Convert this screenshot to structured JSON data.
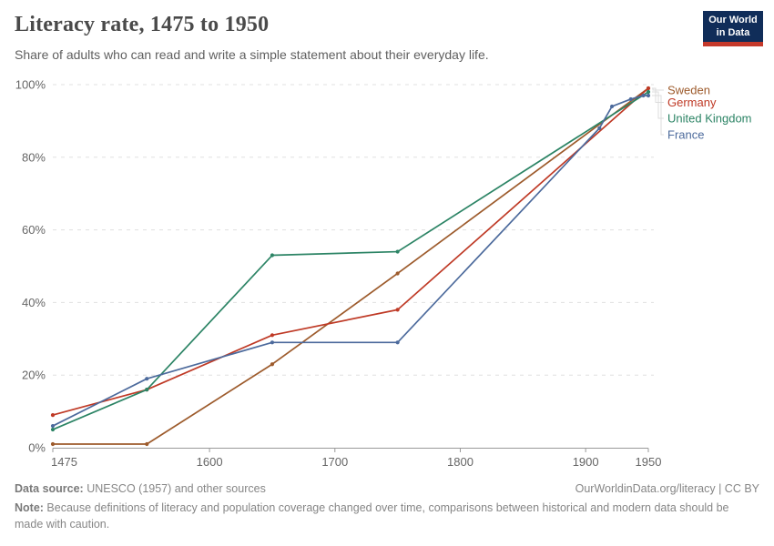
{
  "header": {
    "title": "Literacy rate, 1475 to 1950",
    "subtitle": "Share of adults who can read and write a simple statement about their everyday life.",
    "logo": {
      "line1": "Our World",
      "line2": "in Data"
    }
  },
  "colors": {
    "sweden": "#9d5b2c",
    "germany": "#bf3a26",
    "united_kingdom": "#2c8465",
    "france": "#4c6a9c",
    "gridline": "#e0e0e0",
    "axis_line": "#999999",
    "axis_text": "#666666",
    "connector": "#dcdcdc",
    "logo_bg": "#102d59",
    "logo_accent": "#c5392b"
  },
  "chart_data": {
    "type": "line",
    "title": "Literacy rate, 1475 to 1950",
    "xlabel": "",
    "ylabel": "",
    "xlim": [
      1475,
      1950
    ],
    "ylim": [
      0,
      100
    ],
    "x_ticks": [
      1475,
      1600,
      1700,
      1800,
      1900,
      1950
    ],
    "y_ticks": [
      0,
      20,
      40,
      60,
      80,
      100
    ],
    "y_tick_suffix": "%",
    "grid": "horizontal-dashed",
    "legend_position": "right-of-line-ends",
    "series": [
      {
        "name": "Sweden",
        "color": "#9d5b2c",
        "points": [
          [
            1475,
            1
          ],
          [
            1550,
            1
          ],
          [
            1650,
            23
          ],
          [
            1750,
            48
          ],
          [
            1950,
            99
          ]
        ]
      },
      {
        "name": "Germany",
        "color": "#bf3a26",
        "points": [
          [
            1475,
            9
          ],
          [
            1550,
            16
          ],
          [
            1650,
            31
          ],
          [
            1750,
            38
          ],
          [
            1950,
            99
          ]
        ]
      },
      {
        "name": "United Kingdom",
        "color": "#2c8465",
        "points": [
          [
            1475,
            5
          ],
          [
            1550,
            16
          ],
          [
            1650,
            53
          ],
          [
            1750,
            54
          ],
          [
            1950,
            98
          ]
        ]
      },
      {
        "name": "France",
        "color": "#4c6a9c",
        "points": [
          [
            1475,
            6
          ],
          [
            1550,
            19
          ],
          [
            1650,
            29
          ],
          [
            1750,
            29
          ],
          [
            1911,
            88
          ],
          [
            1921,
            94
          ],
          [
            1936,
            96
          ],
          [
            1946,
            97
          ],
          [
            1950,
            97
          ]
        ]
      }
    ]
  },
  "footer": {
    "source_label": "Data source:",
    "source_text": " UNESCO (1957) and other sources",
    "credit": "OurWorldinData.org/literacy | CC BY",
    "note_label": "Note:",
    "note_text": " Because definitions of literacy and population coverage changed over time, comparisons between historical and modern data should be made with caution."
  }
}
